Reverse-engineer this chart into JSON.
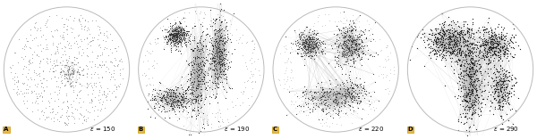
{
  "panels": [
    {
      "label": "A",
      "epsilon": 150,
      "label_color": "#E8B84B"
    },
    {
      "label": "B",
      "epsilon": 190,
      "label_color": "#E8B84B"
    },
    {
      "label": "C",
      "epsilon": 220,
      "label_color": "#E8B84B"
    },
    {
      "label": "D",
      "epsilon": 290,
      "label_color": "#E8B84B"
    }
  ],
  "figsize": [
    6.0,
    1.56
  ],
  "dpi": 100,
  "panel_bg": "white",
  "border_color": "#cccccc"
}
